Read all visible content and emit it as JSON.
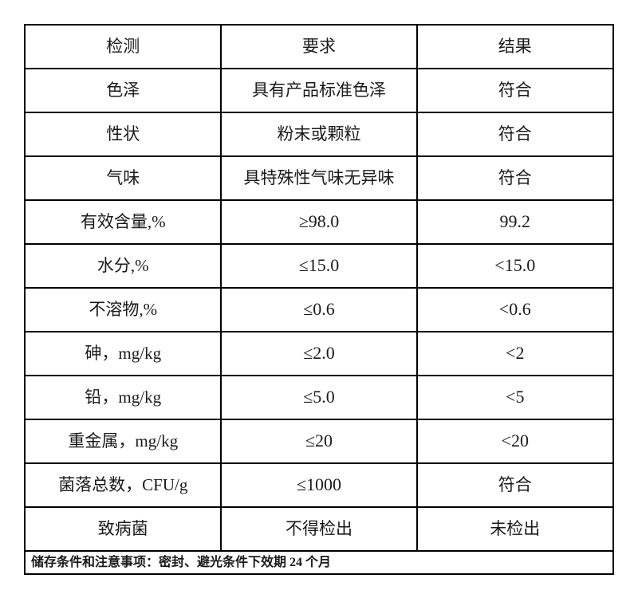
{
  "table": {
    "headers": [
      "检测",
      "要求",
      "结果"
    ],
    "rows": [
      {
        "test": "色泽",
        "requirement": "具有产品标准色泽",
        "result": "符合"
      },
      {
        "test": "性状",
        "requirement": "粉末或颗粒",
        "result": "符合"
      },
      {
        "test": "气味",
        "requirement": "具特殊性气味无异味",
        "result": "符合"
      },
      {
        "test": "有效含量,%",
        "requirement": "≥98.0",
        "result": "99.2"
      },
      {
        "test": "水分,%",
        "requirement": "≤15.0",
        "result": "<15.0"
      },
      {
        "test": "不溶物,%",
        "requirement": "≤0.6",
        "result": "<0.6"
      },
      {
        "test": "砷，mg/kg",
        "requirement": "≤2.0",
        "result": "<2"
      },
      {
        "test": "铅，mg/kg",
        "requirement": "≤5.0",
        "result": "<5"
      },
      {
        "test": "重金属，mg/kg",
        "requirement": "≤20",
        "result": "<20"
      },
      {
        "test": "菌落总数，CFU/g",
        "requirement": "≤1000",
        "result": "符合"
      },
      {
        "test": "致病菌",
        "requirement": "不得检出",
        "result": "未检出"
      }
    ],
    "footer": "储存条件和注意事项：密封、避光条件下效期 24 个月"
  },
  "colors": {
    "border": "#000000",
    "text": "#1a1a1a",
    "background": "#ffffff"
  }
}
